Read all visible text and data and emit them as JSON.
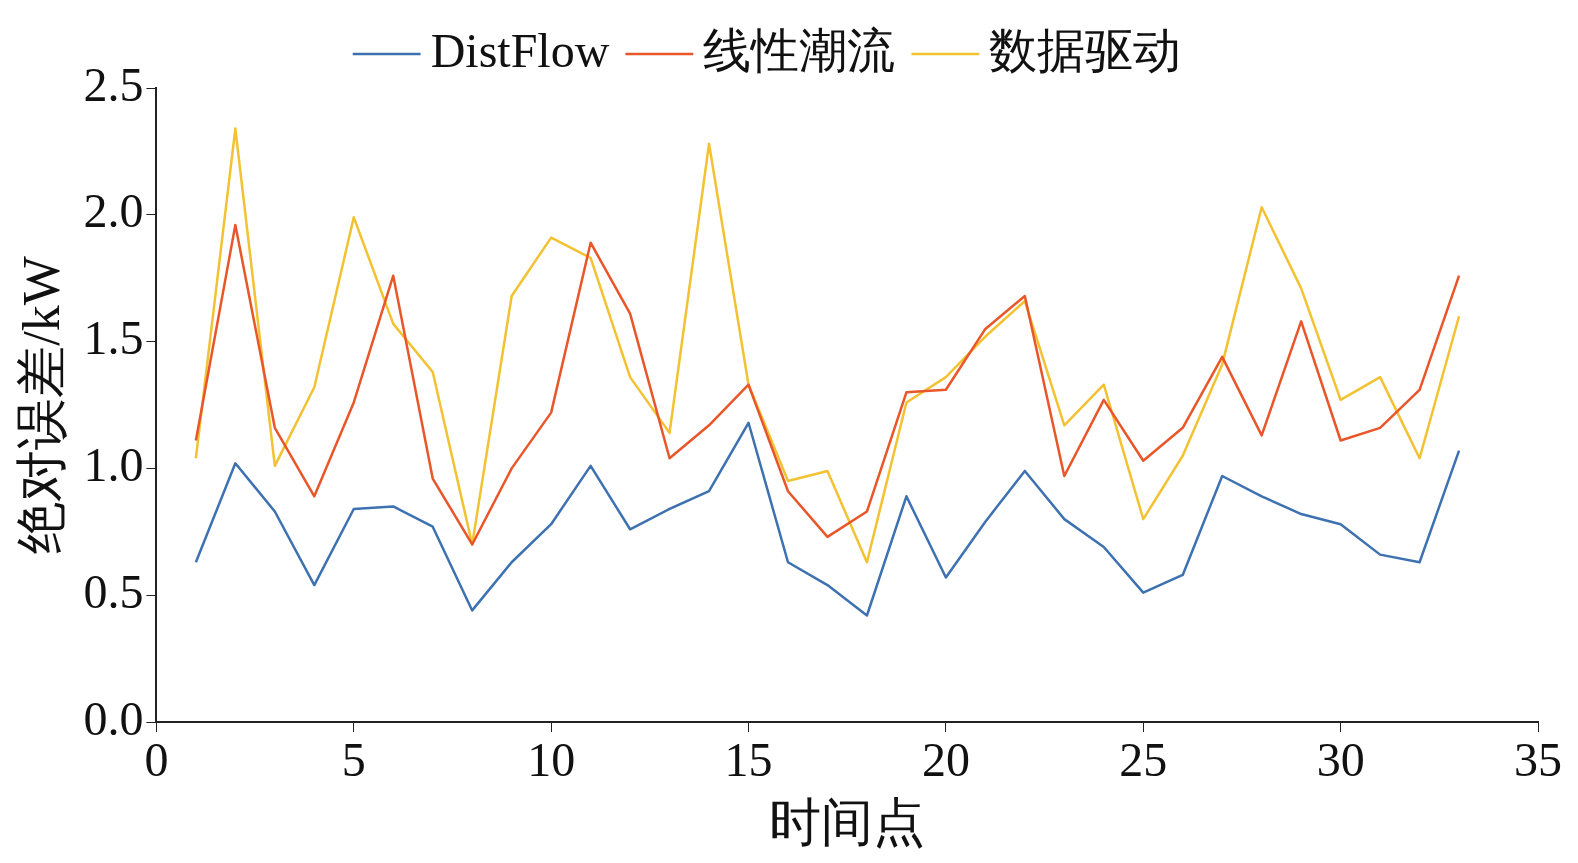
{
  "chart_data": {
    "type": "line",
    "xlabel": "时间点",
    "ylabel": "绝对误差/kW",
    "x": [
      1,
      2,
      3,
      4,
      5,
      6,
      7,
      8,
      9,
      10,
      11,
      12,
      13,
      14,
      15,
      16,
      17,
      18,
      19,
      20,
      21,
      22,
      23,
      24,
      25,
      26,
      27,
      28,
      29,
      30,
      31,
      32,
      33
    ],
    "series": [
      {
        "name": "DistFlow",
        "color": "#3d71b0",
        "values": [
          0.63,
          1.02,
          0.83,
          0.54,
          0.84,
          0.85,
          0.77,
          0.44,
          0.63,
          0.78,
          1.01,
          0.76,
          0.84,
          0.91,
          1.18,
          0.63,
          0.54,
          0.42,
          0.89,
          0.57,
          0.79,
          0.99,
          0.8,
          0.69,
          0.51,
          0.58,
          0.97,
          0.89,
          0.82,
          0.78,
          0.66,
          0.63,
          1.07
        ]
      },
      {
        "name": "线性潮流",
        "color": "#e8562a",
        "values": [
          1.11,
          1.96,
          1.16,
          0.89,
          1.26,
          1.76,
          0.96,
          0.7,
          1.0,
          1.22,
          1.89,
          1.61,
          1.04,
          1.17,
          1.33,
          0.91,
          0.73,
          0.83,
          1.3,
          1.31,
          1.55,
          1.68,
          0.97,
          1.27,
          1.03,
          1.16,
          1.44,
          1.13,
          1.58,
          1.11,
          1.16,
          1.31,
          1.76
        ]
      },
      {
        "name": "数据驱动",
        "color": "#f2c232",
        "values": [
          1.04,
          2.34,
          1.01,
          1.32,
          1.99,
          1.57,
          1.38,
          0.7,
          1.68,
          1.91,
          1.83,
          1.36,
          1.14,
          2.28,
          1.33,
          0.95,
          0.99,
          0.63,
          1.26,
          1.36,
          1.52,
          1.66,
          1.17,
          1.33,
          0.8,
          1.05,
          1.41,
          2.03,
          1.71,
          1.27,
          1.36,
          1.04,
          1.6
        ]
      }
    ],
    "xlim": [
      0,
      35
    ],
    "xticks": [
      0,
      5,
      10,
      15,
      20,
      25,
      30,
      35
    ],
    "ylim": [
      0,
      2.5
    ],
    "yticks": [
      {
        "value": 0,
        "label": "0.0"
      },
      {
        "value": 0.5,
        "label": "0.5"
      },
      {
        "value": 1,
        "label": "1.0"
      },
      {
        "value": 1.5,
        "label": "1.5"
      },
      {
        "value": 2,
        "label": "2.0"
      },
      {
        "value": 2.5,
        "label": "2.5"
      }
    ],
    "grid": false,
    "legend": "top",
    "marker": "none",
    "line_style": "solid"
  }
}
